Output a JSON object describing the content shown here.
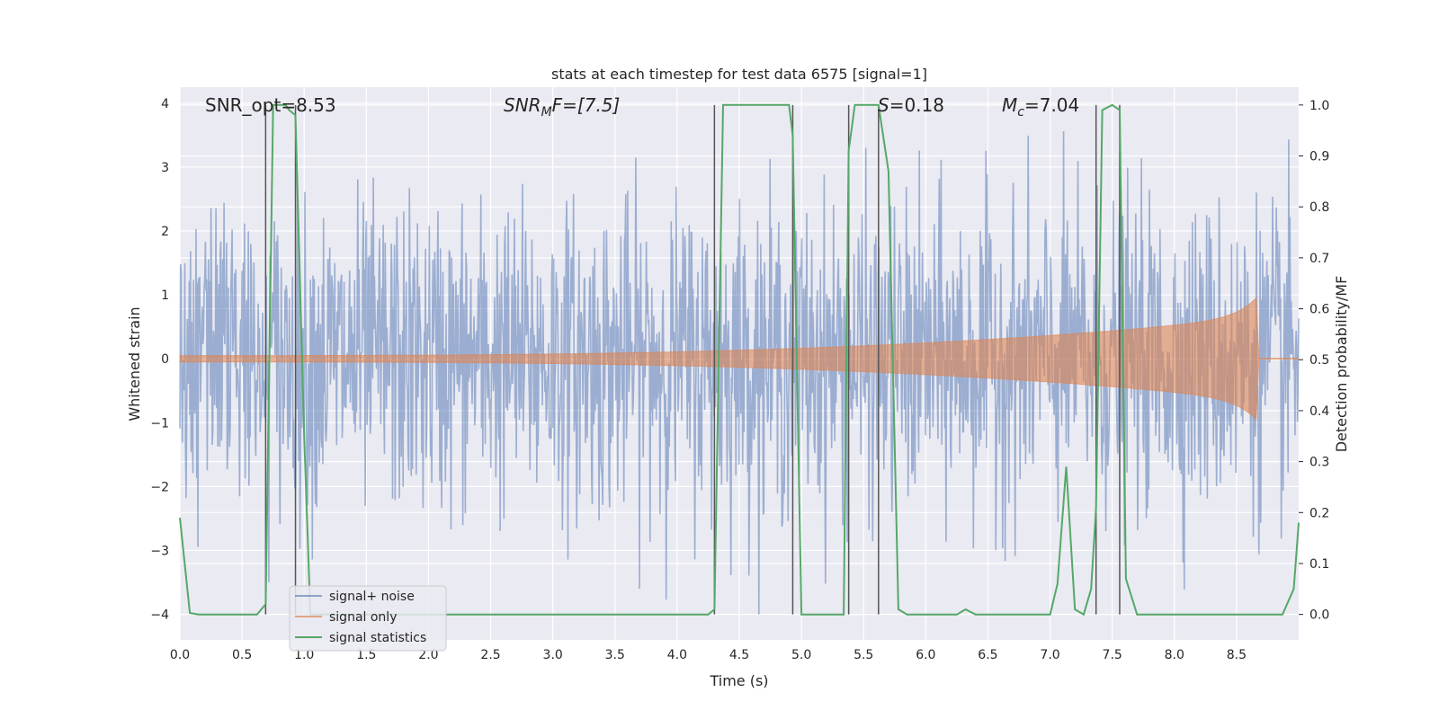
{
  "colors": {
    "plot_bg": "#EAEAF2",
    "grid": "#FFFFFF",
    "signal_noise": "#4C72B0",
    "signal_only": "#DD8452",
    "signal_statistics": "#55A868",
    "vline": "#555555",
    "text": "#262626"
  },
  "chart_data": {
    "type": "line",
    "title": "stats at each timestep for test data 6575 [signal=1]",
    "xlabel": "Time (s)",
    "ylabel": "Whitened strain",
    "y2label": "Detection probability/MF",
    "xlim": [
      0.0,
      9.0
    ],
    "ylim": [
      -4.4,
      4.25
    ],
    "y2lim": [
      -0.05,
      1.035
    ],
    "grid": true,
    "legend_position": "lower-left",
    "x_ticks": [
      "0.0",
      "0.5",
      "1.0",
      "1.5",
      "2.0",
      "2.5",
      "3.0",
      "3.5",
      "4.0",
      "4.5",
      "5.0",
      "5.5",
      "6.0",
      "6.5",
      "7.0",
      "7.5",
      "8.0",
      "8.5"
    ],
    "y_ticks": [
      "−4",
      "−3",
      "−2",
      "−1",
      "0",
      "1",
      "2",
      "3",
      "4"
    ],
    "y2_ticks": [
      "0.0",
      "0.1",
      "0.2",
      "0.3",
      "0.4",
      "0.5",
      "0.6",
      "0.7",
      "0.8",
      "0.9",
      "1.0"
    ],
    "annotations": {
      "snr_opt": "SNR_opt=8.53",
      "snr_mf_base": "SNR",
      "snr_mf_sub": "M",
      "snr_mf_rest": "F=[7.5]",
      "s_var": "S",
      "s_rest": "=0.18",
      "mc_var": "M",
      "mc_sub": "c",
      "mc_rest": "=7.04"
    },
    "vertical_lines_x": [
      0.69,
      0.93,
      4.3,
      4.93,
      5.38,
      5.62,
      7.37,
      7.56
    ],
    "series": [
      {
        "name": "signal+ noise",
        "description_type": "noise",
        "typical_amplitude": 1.2,
        "max_abs": 4.0
      },
      {
        "name": "signal only",
        "description_type": "chirp",
        "start_x": 0.0,
        "merger_x": 8.68,
        "peak_amplitude": 1.0
      },
      {
        "name": "signal statistics",
        "axis": "right",
        "x": [
          0.0,
          0.08,
          0.15,
          0.3,
          0.5,
          0.62,
          0.69,
          0.75,
          0.85,
          0.88,
          0.93,
          1.0,
          1.05,
          1.1,
          1.2,
          1.5,
          2.0,
          3.0,
          4.0,
          4.25,
          4.3,
          4.37,
          4.5,
          4.75,
          4.9,
          4.93,
          5.0,
          5.1,
          5.3,
          5.34,
          5.38,
          5.43,
          5.5,
          5.62,
          5.7,
          5.78,
          5.85,
          6.0,
          6.25,
          6.32,
          6.4,
          7.0,
          7.06,
          7.13,
          7.2,
          7.27,
          7.33,
          7.37,
          7.42,
          7.5,
          7.56,
          7.61,
          7.7,
          8.0,
          8.5,
          8.87,
          8.96,
          9.0
        ],
        "values": [
          0.19,
          0.003,
          0.0,
          0.0,
          0.0,
          0.0,
          0.02,
          1.0,
          1.0,
          0.99,
          0.98,
          0.35,
          0.0,
          0.0,
          0.0,
          0.0,
          0.0,
          0.0,
          0.0,
          0.0,
          0.01,
          1.0,
          1.0,
          1.0,
          1.0,
          0.94,
          0.0,
          0.0,
          0.0,
          0.0,
          0.91,
          1.0,
          1.0,
          1.0,
          0.87,
          0.01,
          0.0,
          0.0,
          0.0,
          0.01,
          0.0,
          0.0,
          0.06,
          0.29,
          0.01,
          0.0,
          0.05,
          0.21,
          0.99,
          1.0,
          0.99,
          0.07,
          0.0,
          0.0,
          0.0,
          0.0,
          0.05,
          0.18
        ]
      }
    ]
  }
}
